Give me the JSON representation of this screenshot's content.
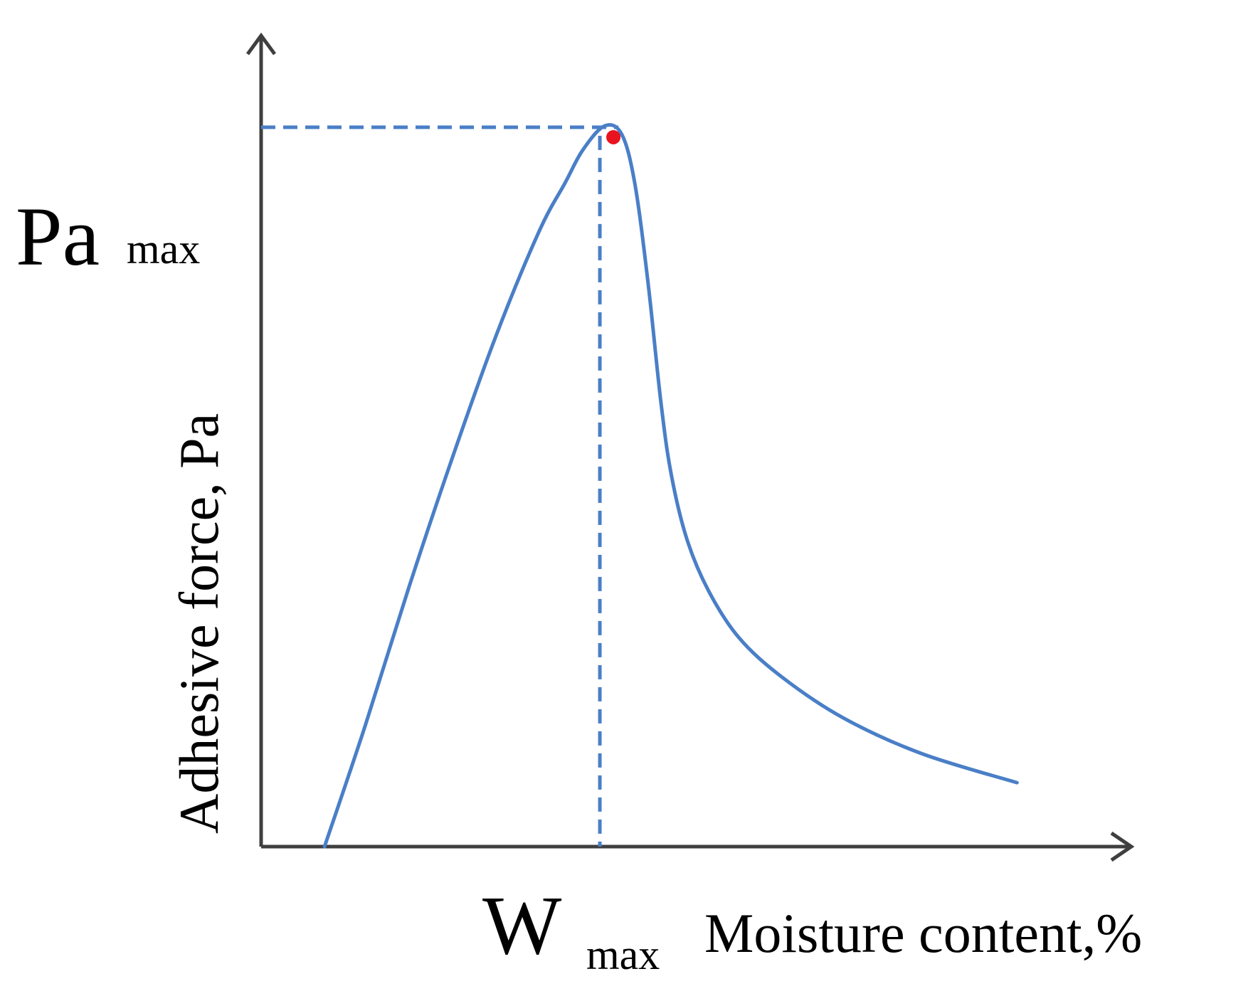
{
  "chart_data": {
    "type": "line",
    "xlabel": "Moisture content,%",
    "ylabel": "Adhesive force,  Pa",
    "x_peak_label": {
      "main": "W",
      "sub": "max"
    },
    "y_peak_label": {
      "main": "Pa",
      "sub": "max"
    },
    "xlim": [
      0,
      100
    ],
    "ylim": [
      0,
      100
    ],
    "grid": false,
    "series": [
      {
        "x": [
          7.3,
          12,
          17,
          22,
          27,
          32,
          35,
          37,
          39.5,
          41.5,
          43,
          44.5,
          46,
          47.2,
          49,
          51.5,
          55,
          60,
          67,
          76,
          87
        ],
        "y": [
          0,
          15,
          32,
          48,
          63,
          76,
          82,
          86,
          89,
          88,
          82,
          70,
          55,
          46,
          38,
          31.6,
          25.8,
          20.9,
          15.9,
          11.5,
          7.9
        ]
      }
    ],
    "peak": {
      "x": 40.3,
      "y": 87.8
    },
    "colors": {
      "curve": "#4a7fc7",
      "peak_marker": "#e8131f",
      "axes": "#3f3f3f"
    }
  }
}
